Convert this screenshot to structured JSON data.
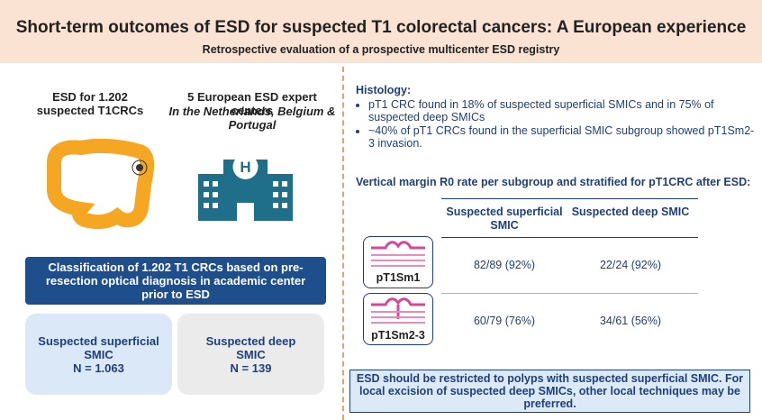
{
  "header": {
    "title": "Short-term outcomes of ESD for suspected T1 colorectal cancers: A European experience",
    "subtitle": "Retrospective evaluation of a prospective multicenter ESD registry"
  },
  "left": {
    "cohort": "ESD for 1.202 suspected T1CRCs",
    "centers": "5 European ESD expert centers",
    "countries": "In the Netherlands, Belgium & Portugal",
    "hospital_sign": "H",
    "classification": "Classification of 1.202 T1 CRCs based on pre-resection optical diagnosis in academic center prior to ESD",
    "groups": [
      {
        "name": "Suspected superficial SMIC",
        "n": "N = 1.063"
      },
      {
        "name": "Suspected deep SMIC",
        "n": "N = 139"
      }
    ]
  },
  "histology": {
    "heading": "Histology:",
    "bullets": [
      "pT1 CRC found in 18% of suspected superficial SMICs and in 75% of suspected deep SMICs",
      "~40% of pT1 CRCs found in the superficial SMIC subgroup showed pT1Sm2-3 invasion."
    ]
  },
  "table": {
    "caption": "Vertical margin R0 rate per subgroup and stratified for pT1CRC after ESD:",
    "columns": [
      "Suspected superficial SMIC",
      "Suspected deep SMIC"
    ],
    "rows": [
      {
        "label": "pT1Sm1",
        "cells": [
          "82/89 (92%)",
          "22/24 (92%)"
        ]
      },
      {
        "label": "pT1Sm2-3",
        "cells": [
          "60/79 (76%)",
          "34/61 (56%)"
        ]
      }
    ]
  },
  "conclusion": "ESD should be restricted to polyps with suspected superficial SMIC. For local excision of suspected deep SMICs, other local techniques may be preferred."
}
